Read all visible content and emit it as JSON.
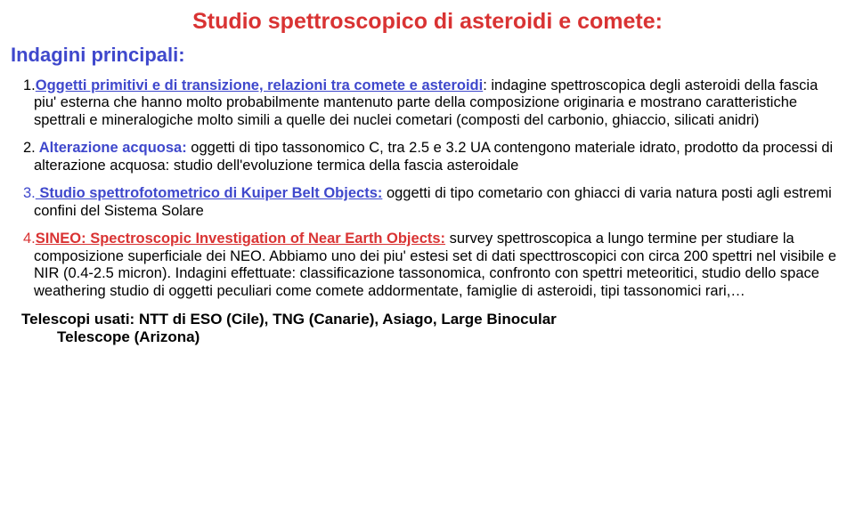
{
  "colors": {
    "red": "#d93333",
    "blue": "#3f48cc",
    "black": "#000000",
    "background": "#ffffff"
  },
  "title": "Studio spettroscopico di asteroidi e comete:",
  "subtitle": "Indagini principali:",
  "item1": {
    "num": "1.",
    "lead": "Oggetti primitivi e di transizione, relazioni tra comete e asteroidi",
    "body": ": indagine spettroscopica degli asteroidi della fascia piu' esterna che hanno molto probabilmente mantenuto parte della composizione originaria e mostrano caratteristiche spettrali e mineralogiche molto simili a quelle dei nuclei cometari (composti del carbonio, ghiaccio, silicati anidri)"
  },
  "item2": {
    "num": "2.",
    "lead": " Alterazione acquosa:",
    "body": " oggetti di tipo tassonomico C, tra 2.5 e 3.2 UA contengono materiale idrato, prodotto da processi di alterazione acquosa: studio dell'evoluzione termica della fascia asteroidale"
  },
  "item3": {
    "num": "3.",
    "lead": " Studio spettrofotometrico di Kuiper Belt Objects:",
    "body": " oggetti di tipo cometario con ghiacci di varia natura posti agli estremi confini del Sistema Solare"
  },
  "item4": {
    "num": "4.",
    "lead": "SINEO: Spectroscopic Investigation of Near Earth Objects:",
    "body": " survey spettroscopica a lungo termine per studiare la composizione superficiale dei NEO. Abbiamo uno dei piu' estesi set di dati specttroscopici con circa 200 spettri nel visibile e NIR (0.4-2.5 micron). Indagini effettuate: classificazione tassonomica, confronto con spettri meteoritici, studio dello space weathering studio di oggetti peculiari come comete addormentate, famiglie di asteroidi, tipi tassonomici rari,…"
  },
  "footer_line1": "Telescopi usati: NTT di ESO (Cile), TNG (Canarie), Asiago, Large Binocular",
  "footer_line2": "Telescope (Arizona)"
}
